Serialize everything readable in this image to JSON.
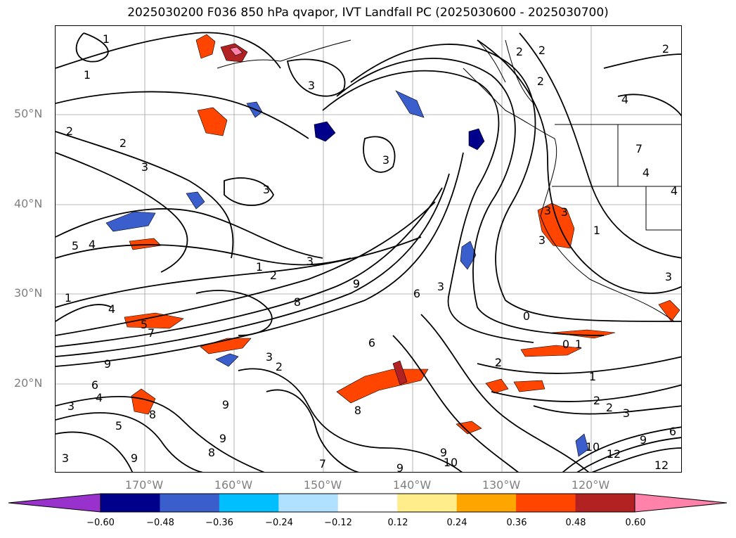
{
  "title": "2025030200 F036 850 hPa qvapor, IVT Landfall PC (2025030600 - 2025030700)",
  "axes": {
    "lon_labels": [
      "170°W",
      "160°W",
      "150°W",
      "140°W",
      "130°W",
      "120°W"
    ],
    "lat_labels": [
      "50°N",
      "40°N",
      "30°N",
      "20°N"
    ]
  },
  "colorbar": {
    "colors": [
      "#9932cc",
      "#00008b",
      "#3a5fcd",
      "#00bfff",
      "#b0e2ff",
      "#ffffff",
      "#ffec8b",
      "#ffa500",
      "#ff4500",
      "#b22222",
      "#ff82ab"
    ],
    "ticks": [
      "−0.60",
      "−0.48",
      "−0.36",
      "−0.24",
      "−0.12",
      "0.12",
      "0.24",
      "0.36",
      "0.48",
      "0.60"
    ]
  },
  "contour_labels": [
    "1",
    "1",
    "2",
    "2",
    "3",
    "3",
    "3",
    "3",
    "2",
    "4",
    "5",
    "4",
    "4",
    "1",
    "2",
    "3",
    "3",
    "9",
    "8",
    "5",
    "7",
    "1",
    "6",
    "3",
    "2",
    "9",
    "9",
    "8",
    "6",
    "4",
    "3",
    "5",
    "9",
    "8",
    "3",
    "9",
    "8",
    "9",
    "10",
    "7",
    "9",
    "6",
    "0",
    "0",
    "1",
    "2",
    "1",
    "2",
    "2",
    "3",
    "6",
    "10",
    "12",
    "9",
    "12",
    "9",
    "3",
    "2",
    "4",
    "7",
    "4",
    "3",
    "1",
    "3",
    "3",
    "2",
    "2",
    "2"
  ]
}
